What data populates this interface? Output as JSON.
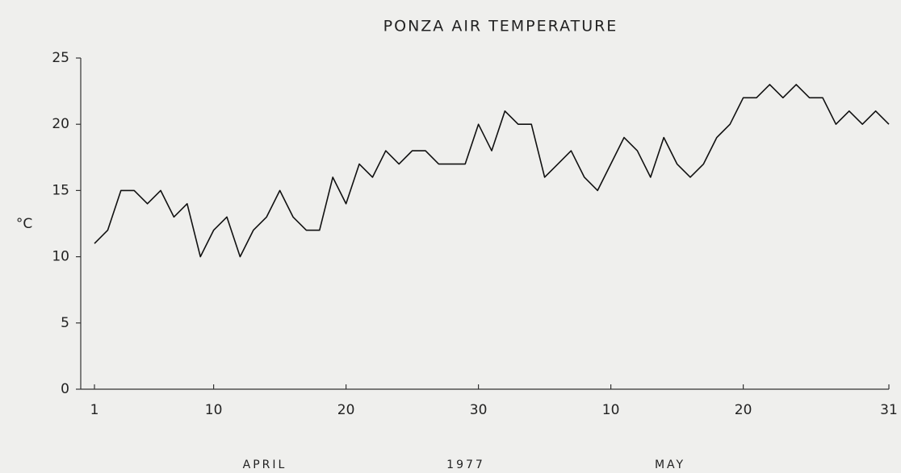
{
  "chart_data": {
    "type": "line",
    "title": "PONZA AIR TEMPERATURE",
    "y_label": "°C",
    "annotations": [
      "APRIL",
      "1977",
      "MAY"
    ],
    "x": [
      1,
      2,
      3,
      4,
      5,
      6,
      7,
      8,
      9,
      10,
      11,
      12,
      13,
      14,
      15,
      16,
      17,
      18,
      19,
      20,
      21,
      22,
      23,
      24,
      25,
      26,
      27,
      28,
      29,
      30,
      31,
      32,
      33,
      34,
      35,
      36,
      37,
      38,
      39,
      40,
      41,
      42,
      43,
      44,
      45,
      46,
      47,
      48,
      49,
      50,
      51,
      52,
      53,
      54,
      55,
      56,
      57,
      58,
      59,
      60,
      61
    ],
    "series": [
      {
        "name": "Air temperature",
        "color": "#111111",
        "values": [
          11,
          12,
          15,
          15,
          14,
          15,
          13,
          14,
          10,
          12,
          13,
          10,
          12,
          13,
          15,
          13,
          12,
          12,
          16,
          14,
          17,
          16,
          18,
          17,
          18,
          18,
          17,
          17,
          17,
          20,
          18,
          21,
          20,
          20,
          16,
          17,
          18,
          16,
          15,
          17,
          19,
          18,
          16,
          19,
          17,
          16,
          17,
          19,
          20,
          22,
          22,
          23,
          22,
          23,
          22,
          22,
          20,
          21,
          20,
          21,
          20
        ]
      }
    ],
    "xlim": [
      1,
      61
    ],
    "xticks": [
      1,
      10,
      20,
      30,
      {
        "value": 40,
        "label": "10"
      },
      {
        "value": 50,
        "label": "20"
      },
      {
        "value": 61,
        "label": "31"
      }
    ],
    "ylim": [
      0,
      25
    ],
    "yticks": [
      0,
      5,
      10,
      15,
      20,
      25
    ],
    "legend": false
  }
}
